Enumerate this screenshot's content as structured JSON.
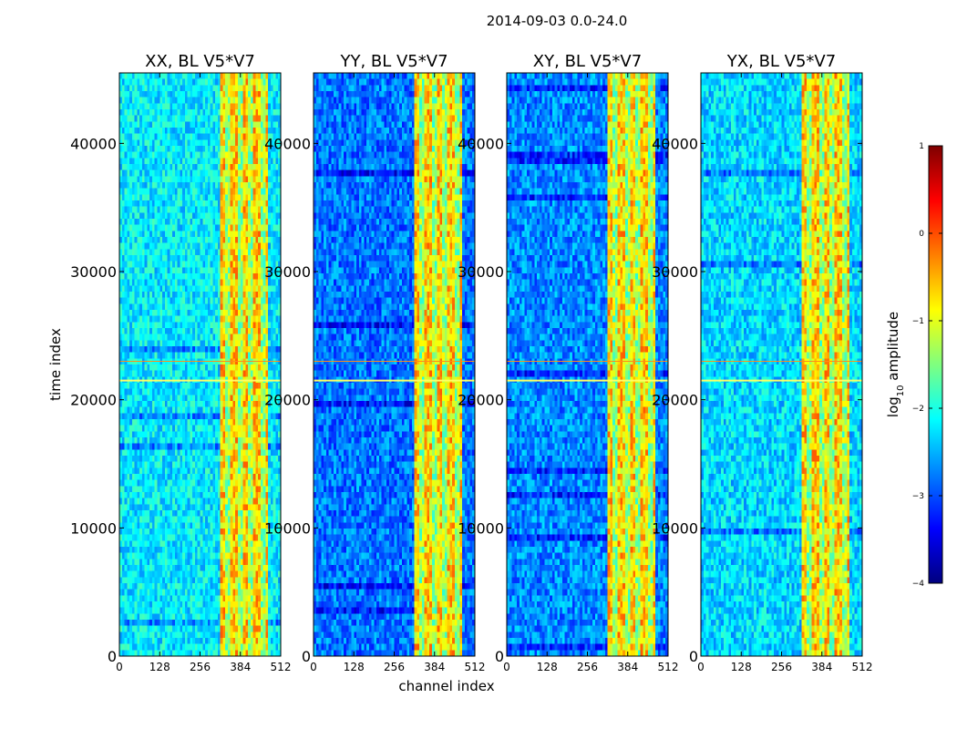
{
  "chart_data": {
    "type": "heatmap",
    "suptitle": "2014-09-03 0.0-24.0",
    "xlabel": "channel index",
    "ylabel": "time index",
    "xlim": [
      0,
      512
    ],
    "ylim": [
      0,
      45500
    ],
    "xticks": [
      0,
      128,
      256,
      384,
      512
    ],
    "yticks": [
      0,
      10000,
      20000,
      30000,
      40000
    ],
    "panels": [
      {
        "title": "XX, BL V5*V7",
        "background_level": -2.2
      },
      {
        "title": "YY, BL V5*V7",
        "background_level": -2.8
      },
      {
        "title": "XY, BL V5*V7",
        "background_level": -2.7
      },
      {
        "title": "YX, BL V5*V7",
        "background_level": -2.3
      }
    ],
    "high_amplitude_channel_range": [
      320,
      470
    ],
    "colorbar": {
      "label": "log10 amplitude",
      "label_base": "log",
      "label_sub": "10",
      "label_rest": " amplitude",
      "range": [
        -4,
        1
      ],
      "ticks": [
        "1",
        "0",
        "−1",
        "−2",
        "−3",
        "−4"
      ],
      "tick_values": [
        1,
        0,
        -1,
        -2,
        -3,
        -4
      ],
      "colormap": "jet",
      "colormap_stops": [
        "#00007f",
        "#0000ff",
        "#007fff",
        "#00ffff",
        "#7fff7f",
        "#ffff00",
        "#ff7f00",
        "#ff0000",
        "#7f0000"
      ]
    }
  }
}
